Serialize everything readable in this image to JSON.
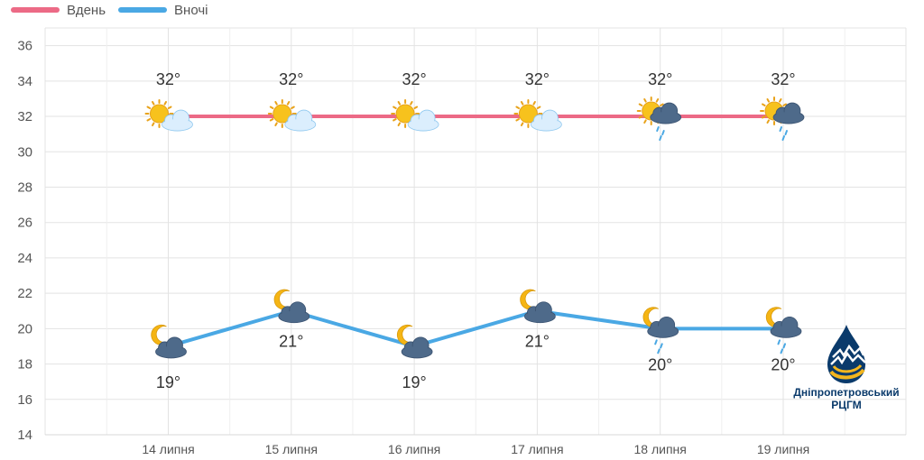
{
  "legend": {
    "day_label": "Вдень",
    "night_label": "Вночі"
  },
  "colors": {
    "day": "#ec6a86",
    "night": "#4aa8e4",
    "grid": "#e3e3e3",
    "brand_dark": "#0a3a6b",
    "brand_gold": "#f2b51e"
  },
  "brand": {
    "line1": "Дніпропетровський",
    "line2": "РЦГМ"
  },
  "chart_data": {
    "type": "line",
    "categories": [
      "14 липня",
      "15 липня",
      "16 липня",
      "17 липня",
      "18 липня",
      "19 липня"
    ],
    "series": [
      {
        "name": "Вдень",
        "values": [
          32,
          32,
          32,
          32,
          32,
          32
        ],
        "labels": [
          "32°",
          "32°",
          "32°",
          "32°",
          "32°",
          "32°"
        ],
        "icons": [
          "sun-cloud-icon",
          "sun-cloud-icon",
          "sun-cloud-icon",
          "sun-cloud-icon",
          "sun-rain-cloud-icon",
          "sun-rain-cloud-icon"
        ]
      },
      {
        "name": "Вночі",
        "values": [
          19,
          21,
          19,
          21,
          20,
          20
        ],
        "labels": [
          "19°",
          "21°",
          "19°",
          "21°",
          "20°",
          "20°"
        ],
        "icons": [
          "moon-cloud-icon",
          "moon-cloud-icon",
          "moon-cloud-icon",
          "moon-cloud-icon",
          "moon-rain-cloud-icon",
          "moon-rain-cloud-icon"
        ]
      }
    ],
    "yticks": [
      14,
      16,
      18,
      20,
      22,
      24,
      26,
      28,
      30,
      32,
      34,
      36
    ],
    "ylim": [
      14,
      37
    ],
    "grid": true,
    "legend_position": "top-left"
  }
}
